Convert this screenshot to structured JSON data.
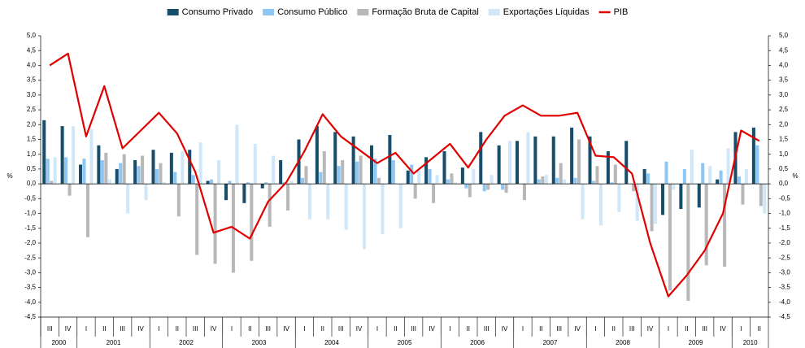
{
  "chart_data": {
    "type": "bar",
    "y_label": "%",
    "categories": [
      "III",
      "IV",
      "I",
      "II",
      "III",
      "IV",
      "I",
      "II",
      "III",
      "IV",
      "I",
      "II",
      "III",
      "IV",
      "I",
      "II",
      "III",
      "IV",
      "I",
      "II",
      "III",
      "IV",
      "I",
      "II",
      "III",
      "IV",
      "I",
      "II",
      "III",
      "IV",
      "I",
      "II",
      "III",
      "IV",
      "I",
      "II",
      "III",
      "IV",
      "I",
      "II"
    ],
    "years": [
      "2000",
      "2001",
      "2002",
      "2003",
      "2004",
      "2005",
      "2006",
      "2007",
      "2008",
      "2009",
      "2010"
    ],
    "ylim": [
      -4.5,
      5.0
    ],
    "yticks": [
      {
        "value": 5.0,
        "label": "5,0"
      },
      {
        "value": 4.5,
        "label": "4,5"
      },
      {
        "value": 4.0,
        "label": "4,0"
      },
      {
        "value": 3.5,
        "label": "3,5"
      },
      {
        "value": 3.0,
        "label": "3,0"
      },
      {
        "value": 2.5,
        "label": "2,5"
      },
      {
        "value": 2.0,
        "label": "2,0"
      },
      {
        "value": 1.5,
        "label": "1,5"
      },
      {
        "value": 1.0,
        "label": "1,0"
      },
      {
        "value": 0.5,
        "label": "0,5"
      },
      {
        "value": 0.0,
        "label": "0,0"
      },
      {
        "value": -0.5,
        "label": "-0,5"
      },
      {
        "value": -1.0,
        "label": "-1,0"
      },
      {
        "value": -1.5,
        "label": "-1,5"
      },
      {
        "value": -2.0,
        "label": "-2,0"
      },
      {
        "value": -2.5,
        "label": "-2,5"
      },
      {
        "value": -3.0,
        "label": "-3,0"
      },
      {
        "value": -3.5,
        "label": "-3,5"
      },
      {
        "value": -4.0,
        "label": "-4,0"
      },
      {
        "value": -4.5,
        "label": "-4,5"
      }
    ],
    "grid": false,
    "legend": "top",
    "series": [
      {
        "name": "Consumo Privado",
        "type": "bar",
        "color": "#184e6b",
        "values": [
          2.15,
          1.95,
          0.65,
          1.3,
          0.5,
          0.8,
          1.15,
          1.05,
          1.15,
          0.1,
          -0.55,
          -0.65,
          -0.15,
          0.8,
          1.5,
          1.95,
          1.75,
          1.6,
          1.3,
          1.65,
          0.45,
          0.9,
          1.1,
          0.55,
          1.75,
          1.3,
          1.45,
          1.6,
          1.6,
          1.9,
          1.6,
          1.1,
          1.45,
          0.5,
          -1.05,
          -0.85,
          -0.8,
          0.15,
          1.75,
          1.9
        ]
      },
      {
        "name": "Consumo Público",
        "type": "bar",
        "color": "#8ec6f4",
        "values": [
          0.85,
          0.9,
          0.85,
          0.8,
          0.7,
          0.6,
          0.5,
          0.4,
          0.3,
          0.15,
          0.1,
          0.05,
          0.05,
          0.05,
          0.2,
          0.4,
          0.6,
          0.75,
          0.85,
          0.8,
          0.65,
          0.5,
          0.15,
          -0.15,
          -0.25,
          -0.2,
          0.0,
          0.15,
          0.2,
          0.2,
          0.1,
          0.05,
          0.0,
          0.35,
          0.75,
          0.5,
          0.7,
          0.45,
          0.25,
          1.3
        ]
      },
      {
        "name": "Formação Bruta de Capital",
        "type": "bar",
        "color": "#b8b8b8",
        "values": [
          0.1,
          -0.4,
          -1.8,
          1.05,
          1.0,
          0.95,
          0.7,
          -1.1,
          -2.4,
          -2.7,
          -3.0,
          -2.6,
          -1.45,
          -0.9,
          0.6,
          1.1,
          0.8,
          0.95,
          0.2,
          0.0,
          -0.5,
          -0.65,
          0.35,
          -0.45,
          -0.2,
          -0.3,
          -0.55,
          0.25,
          0.7,
          1.5,
          0.6,
          0.65,
          -0.25,
          -1.6,
          -3.6,
          -3.95,
          -2.75,
          -2.8,
          -0.7,
          -0.75
        ]
      },
      {
        "name": "Exportações Líquidas",
        "type": "bar",
        "color": "#cfe7f8",
        "values": [
          0.9,
          1.95,
          1.85,
          0.15,
          -1.0,
          -0.55,
          0.05,
          1.1,
          1.4,
          0.8,
          2.0,
          1.35,
          0.95,
          0.1,
          -1.2,
          -1.2,
          -1.55,
          -2.2,
          -1.7,
          -1.5,
          0.45,
          0.3,
          0.05,
          0.5,
          0.3,
          1.45,
          1.75,
          0.3,
          0.15,
          -1.2,
          -1.4,
          -0.95,
          -1.25,
          -1.35,
          -0.2,
          1.15,
          0.6,
          1.2,
          0.5,
          -1.0
        ]
      },
      {
        "name": "PIB",
        "type": "line",
        "color": "#e00000",
        "values": [
          4.0,
          4.4,
          1.6,
          3.3,
          1.2,
          1.8,
          2.4,
          1.7,
          0.4,
          -1.65,
          -1.45,
          -1.85,
          -0.6,
          0.05,
          1.1,
          2.35,
          1.6,
          1.15,
          0.7,
          1.05,
          0.35,
          0.85,
          1.35,
          0.55,
          1.5,
          2.3,
          2.65,
          2.3,
          2.3,
          2.4,
          0.95,
          0.9,
          0.35,
          -2.0,
          -3.8,
          -3.1,
          -2.25,
          -1.0,
          1.8,
          1.45
        ]
      }
    ]
  }
}
